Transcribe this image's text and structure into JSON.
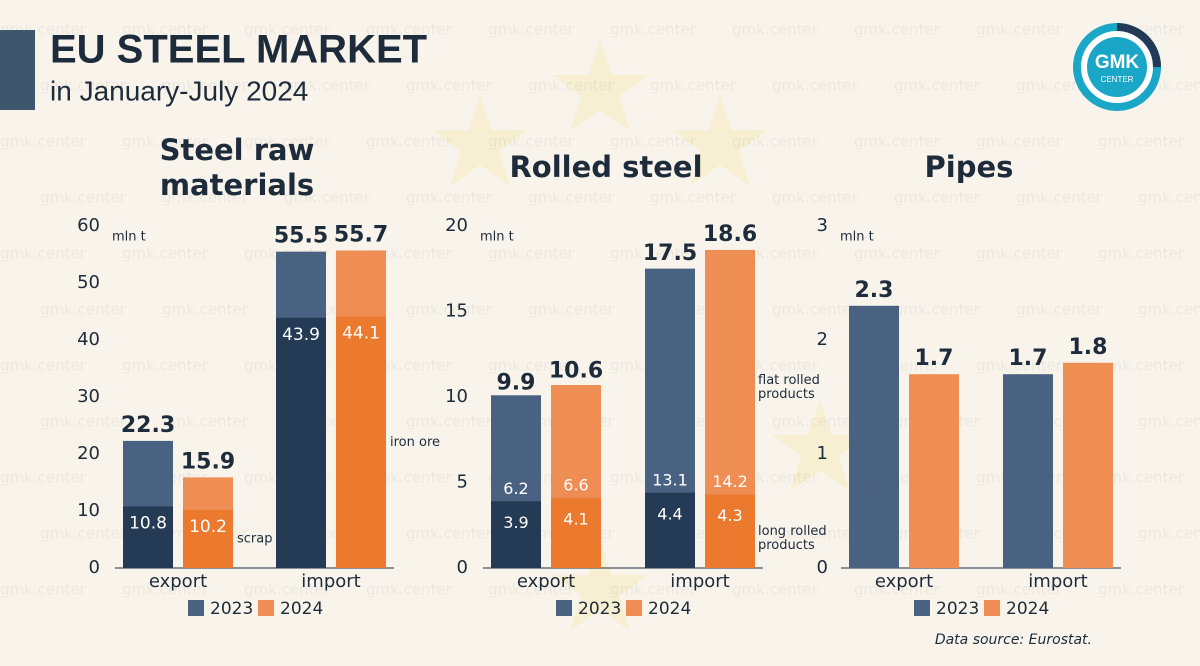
{
  "header": {
    "title": "EU STEEL MARKET",
    "subtitle": "in January-July 2024"
  },
  "logo": {
    "text": "GMK",
    "subtext": "CENTER"
  },
  "watermark": "gmk.center",
  "source": "Data source: Eurostat.",
  "chart_data": [
    {
      "type": "bar",
      "title": "Steel raw materials",
      "unit": "mln t",
      "categories": [
        "export",
        "import"
      ],
      "ylim": [
        0,
        60
      ],
      "yticks": [
        0,
        10,
        20,
        30,
        40,
        50,
        60
      ],
      "part_names": [
        "scrap",
        "iron ore"
      ],
      "series": [
        {
          "name": "2023",
          "color": "#4a6282",
          "part_color": "#243a55",
          "values": [
            22.3,
            55.5
          ],
          "part_values": [
            10.8,
            43.9
          ]
        },
        {
          "name": "2024",
          "color": "#ee8e55",
          "part_color": "#ec7a2e",
          "values": [
            15.9,
            55.7
          ],
          "part_values": [
            10.2,
            44.1
          ]
        }
      ]
    },
    {
      "type": "bar",
      "title": "Rolled steel",
      "unit": "mln t",
      "categories": [
        "export",
        "import"
      ],
      "ylim": [
        0,
        20
      ],
      "yticks": [
        0,
        5,
        10,
        15,
        20
      ],
      "flat_name": "flat rolled products",
      "long_name": "long rolled products",
      "series": [
        {
          "name": "2023",
          "color": "#4a6282",
          "part_color": "#243a55",
          "values": [
            9.9,
            17.5
          ],
          "flat_values": [
            6.2,
            13.1
          ],
          "long_values": [
            3.9,
            4.4
          ]
        },
        {
          "name": "2024",
          "color": "#ee8e55",
          "part_color": "#ec7a2e",
          "values": [
            10.6,
            18.6
          ],
          "flat_values": [
            6.6,
            14.2
          ],
          "long_values": [
            4.1,
            4.3
          ]
        }
      ]
    },
    {
      "type": "bar",
      "title": "Pipes",
      "unit": "mln t",
      "categories": [
        "export",
        "import"
      ],
      "ylim": [
        0,
        3
      ],
      "yticks": [
        0,
        1,
        2,
        3
      ],
      "series": [
        {
          "name": "2023",
          "color": "#4a6282",
          "values": [
            2.3,
            1.7
          ]
        },
        {
          "name": "2024",
          "color": "#ee8e55",
          "values": [
            1.7,
            1.8
          ]
        }
      ]
    }
  ]
}
